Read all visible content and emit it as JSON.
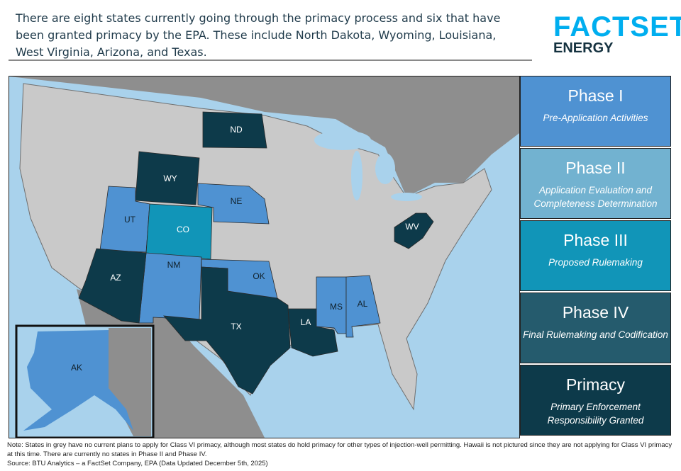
{
  "headline": "There are eight states currently going through the primacy process and six that have been granted primacy by the EPA. These include North Dakota, Wyoming, Louisiana, West Virginia, Arizona, and Texas.",
  "logo": {
    "brand": "FACTSET",
    "sub": "ENERGY"
  },
  "legend": [
    {
      "title": "Phase I",
      "desc": "Pre-Application Activities",
      "color": "#4f92d2"
    },
    {
      "title": "Phase II",
      "desc": "Application Evaluation and Completeness Determination",
      "color": "#72b2d0"
    },
    {
      "title": "Phase III",
      "desc": "Proposed Rulemaking",
      "color": "#1195b8"
    },
    {
      "title": "Phase IV",
      "desc": "Final Rulemaking and Codification",
      "color": "#255b6d"
    },
    {
      "title": "Primacy",
      "desc": "Primary Enforcement Responsibility Granted",
      "color": "#0d3a4a"
    }
  ],
  "states": {
    "ND": {
      "label": "ND",
      "status": "Primacy"
    },
    "WY": {
      "label": "WY",
      "status": "Primacy"
    },
    "UT": {
      "label": "UT",
      "status": "Phase I"
    },
    "CO": {
      "label": "CO",
      "status": "Phase III"
    },
    "NE": {
      "label": "NE",
      "status": "Phase I"
    },
    "NM": {
      "label": "NM",
      "status": "Phase I"
    },
    "AZ": {
      "label": "AZ",
      "status": "Primacy"
    },
    "OK": {
      "label": "OK",
      "status": "Phase I"
    },
    "TX": {
      "label": "TX",
      "status": "Primacy"
    },
    "LA": {
      "label": "LA",
      "status": "Primacy"
    },
    "MS": {
      "label": "MS",
      "status": "Phase I"
    },
    "AL": {
      "label": "AL",
      "status": "Phase I"
    },
    "WV": {
      "label": "WV",
      "status": "Primacy"
    },
    "AK": {
      "label": "AK",
      "status": "Phase I"
    }
  },
  "colors": {
    "ocean": "#a9d2ec",
    "land": "#c9c9c9",
    "foreign": "#8e8e8e"
  },
  "note": "Note: States in grey have no current plans to apply for Class VI primacy, although most states do hold primacy for other types of injection-well permitting. Hawaii is not pictured since they are not applying for Class VI primacy at this time. There are currently no states in Phase II and Phase IV.",
  "source": "Source: BTU Analytics – a FactSet Company, EPA (Data Updated December 5th, 2025)"
}
